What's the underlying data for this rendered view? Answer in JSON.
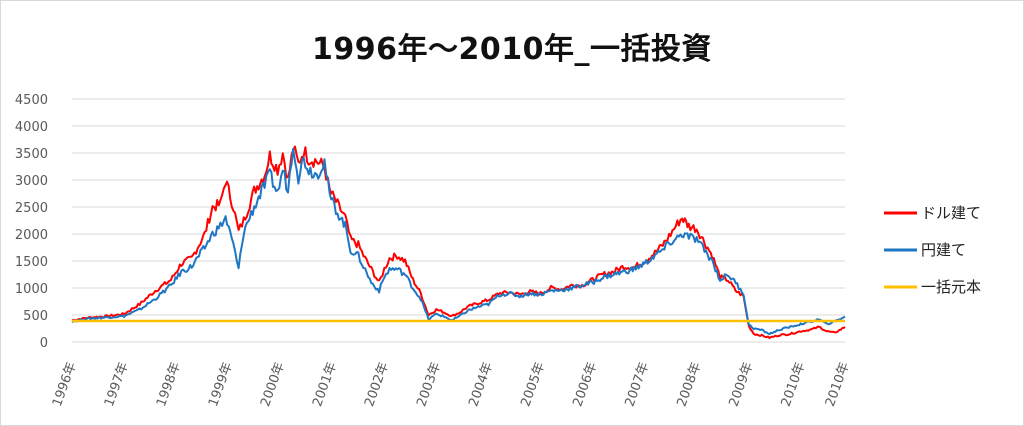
{
  "chart_data": {
    "type": "line",
    "title": "1996年～2010年_一括投資",
    "xlabel": "",
    "ylabel": "",
    "ylim": [
      0,
      4500
    ],
    "xlim": [
      1996.0,
      2010.85
    ],
    "y_ticks": [
      "0",
      "500",
      "1000",
      "1500",
      "2000",
      "2500",
      "3000",
      "3500",
      "4000",
      "4500"
    ],
    "x_ticks": [
      "1996年",
      "1997年",
      "1998年",
      "1999年",
      "2000年",
      "2001年",
      "2002年",
      "2003年",
      "2004年",
      "2005年",
      "2006年",
      "2007年",
      "2008年",
      "2009年",
      "2010年",
      "2010年"
    ],
    "grid": true,
    "legend_position": "right",
    "series": [
      {
        "name": "ドル建て",
        "color": "#ff0000",
        "points": [
          [
            1996.0,
            400
          ],
          [
            1996.3,
            450
          ],
          [
            1996.7,
            480
          ],
          [
            1997.0,
            520
          ],
          [
            1997.3,
            700
          ],
          [
            1997.6,
            950
          ],
          [
            1997.9,
            1150
          ],
          [
            1998.1,
            1450
          ],
          [
            1998.3,
            1550
          ],
          [
            1998.55,
            2000
          ],
          [
            1998.7,
            2500
          ],
          [
            1998.85,
            2550
          ],
          [
            1998.95,
            3000
          ],
          [
            1999.1,
            2500
          ],
          [
            1999.2,
            2050
          ],
          [
            1999.3,
            2250
          ],
          [
            1999.5,
            2800
          ],
          [
            1999.7,
            3100
          ],
          [
            1999.8,
            3450
          ],
          [
            1999.95,
            3200
          ],
          [
            2000.05,
            3500
          ],
          [
            2000.15,
            3000
          ],
          [
            2000.25,
            3600
          ],
          [
            2000.35,
            3300
          ],
          [
            2000.45,
            3550
          ],
          [
            2000.55,
            3400
          ],
          [
            2000.7,
            3350
          ],
          [
            2000.85,
            3250
          ],
          [
            2000.95,
            2800
          ],
          [
            2001.1,
            2550
          ],
          [
            2001.25,
            2300
          ],
          [
            2001.35,
            1900
          ],
          [
            2001.5,
            1800
          ],
          [
            2001.6,
            1600
          ],
          [
            2001.75,
            1350
          ],
          [
            2001.9,
            1100
          ],
          [
            2002.0,
            1350
          ],
          [
            2002.1,
            1550
          ],
          [
            2002.25,
            1600
          ],
          [
            2002.4,
            1500
          ],
          [
            2002.55,
            1150
          ],
          [
            2002.7,
            900
          ],
          [
            2002.85,
            500
          ],
          [
            2003.0,
            600
          ],
          [
            2003.15,
            550
          ],
          [
            2003.3,
            480
          ],
          [
            2003.45,
            550
          ],
          [
            2003.6,
            650
          ],
          [
            2003.8,
            720
          ],
          [
            2004.0,
            780
          ],
          [
            2004.2,
            900
          ],
          [
            2004.4,
            920
          ],
          [
            2004.6,
            880
          ],
          [
            2004.8,
            930
          ],
          [
            2005.0,
            900
          ],
          [
            2005.2,
            1000
          ],
          [
            2005.4,
            980
          ],
          [
            2005.6,
            1050
          ],
          [
            2005.8,
            1050
          ],
          [
            2006.0,
            1150
          ],
          [
            2006.2,
            1250
          ],
          [
            2006.4,
            1300
          ],
          [
            2006.6,
            1400
          ],
          [
            2006.8,
            1380
          ],
          [
            2007.0,
            1500
          ],
          [
            2007.2,
            1650
          ],
          [
            2007.35,
            1800
          ],
          [
            2007.5,
            2000
          ],
          [
            2007.6,
            2150
          ],
          [
            2007.72,
            2300
          ],
          [
            2007.85,
            2150
          ],
          [
            2008.0,
            2100
          ],
          [
            2008.15,
            1850
          ],
          [
            2008.3,
            1600
          ],
          [
            2008.45,
            1200
          ],
          [
            2008.6,
            1150
          ],
          [
            2008.75,
            950
          ],
          [
            2008.9,
            850
          ],
          [
            2009.0,
            300
          ],
          [
            2009.1,
            150
          ],
          [
            2009.25,
            120
          ],
          [
            2009.4,
            80
          ],
          [
            2009.6,
            130
          ],
          [
            2009.8,
            150
          ],
          [
            2010.0,
            200
          ],
          [
            2010.2,
            230
          ],
          [
            2010.35,
            280
          ],
          [
            2010.5,
            200
          ],
          [
            2010.65,
            170
          ],
          [
            2010.8,
            250
          ],
          [
            2010.85,
            280
          ]
        ]
      },
      {
        "name": "円建て",
        "color": "#1f77c4",
        "points": [
          [
            1996.0,
            380
          ],
          [
            1996.3,
            430
          ],
          [
            1996.7,
            460
          ],
          [
            1997.0,
            480
          ],
          [
            1997.3,
            600
          ],
          [
            1997.6,
            800
          ],
          [
            1997.9,
            1050
          ],
          [
            1998.1,
            1300
          ],
          [
            1998.3,
            1400
          ],
          [
            1998.55,
            1750
          ],
          [
            1998.7,
            2000
          ],
          [
            1998.85,
            2150
          ],
          [
            1998.95,
            2300
          ],
          [
            1999.1,
            1800
          ],
          [
            1999.2,
            1350
          ],
          [
            1999.3,
            2050
          ],
          [
            1999.5,
            2500
          ],
          [
            1999.7,
            2900
          ],
          [
            1999.8,
            3100
          ],
          [
            1999.95,
            2750
          ],
          [
            2000.05,
            3200
          ],
          [
            2000.15,
            2800
          ],
          [
            2000.25,
            3700
          ],
          [
            2000.35,
            3050
          ],
          [
            2000.45,
            3400
          ],
          [
            2000.55,
            3200
          ],
          [
            2000.7,
            3100
          ],
          [
            2000.85,
            3350
          ],
          [
            2000.95,
            2700
          ],
          [
            2001.1,
            2400
          ],
          [
            2001.25,
            2150
          ],
          [
            2001.35,
            1700
          ],
          [
            2001.5,
            1600
          ],
          [
            2001.6,
            1400
          ],
          [
            2001.75,
            1100
          ],
          [
            2001.9,
            950
          ],
          [
            2002.0,
            1200
          ],
          [
            2002.1,
            1350
          ],
          [
            2002.25,
            1350
          ],
          [
            2002.4,
            1250
          ],
          [
            2002.55,
            1000
          ],
          [
            2002.7,
            800
          ],
          [
            2002.85,
            420
          ],
          [
            2003.0,
            520
          ],
          [
            2003.15,
            470
          ],
          [
            2003.3,
            400
          ],
          [
            2003.45,
            480
          ],
          [
            2003.6,
            580
          ],
          [
            2003.8,
            650
          ],
          [
            2004.0,
            700
          ],
          [
            2004.2,
            870
          ],
          [
            2004.4,
            900
          ],
          [
            2004.6,
            850
          ],
          [
            2004.8,
            900
          ],
          [
            2005.0,
            880
          ],
          [
            2005.2,
            950
          ],
          [
            2005.4,
            960
          ],
          [
            2005.6,
            1000
          ],
          [
            2005.8,
            1050
          ],
          [
            2006.0,
            1100
          ],
          [
            2006.2,
            1200
          ],
          [
            2006.4,
            1250
          ],
          [
            2006.6,
            1300
          ],
          [
            2006.8,
            1350
          ],
          [
            2007.0,
            1450
          ],
          [
            2007.2,
            1600
          ],
          [
            2007.35,
            1700
          ],
          [
            2007.5,
            1850
          ],
          [
            2007.6,
            1900
          ],
          [
            2007.72,
            2000
          ],
          [
            2007.85,
            1950
          ],
          [
            2008.0,
            1900
          ],
          [
            2008.15,
            1700
          ],
          [
            2008.3,
            1500
          ],
          [
            2008.45,
            1150
          ],
          [
            2008.6,
            1250
          ],
          [
            2008.75,
            1100
          ],
          [
            2008.9,
            900
          ],
          [
            2009.0,
            320
          ],
          [
            2009.1,
            250
          ],
          [
            2009.25,
            220
          ],
          [
            2009.4,
            150
          ],
          [
            2009.6,
            230
          ],
          [
            2009.8,
            280
          ],
          [
            2010.0,
            330
          ],
          [
            2010.2,
            380
          ],
          [
            2010.35,
            420
          ],
          [
            2010.5,
            330
          ],
          [
            2010.65,
            380
          ],
          [
            2010.8,
            450
          ],
          [
            2010.85,
            470
          ]
        ]
      },
      {
        "name": "一括元本",
        "color": "#ffc000",
        "points": [
          [
            1996.0,
            390
          ],
          [
            2010.85,
            390
          ]
        ]
      }
    ]
  }
}
